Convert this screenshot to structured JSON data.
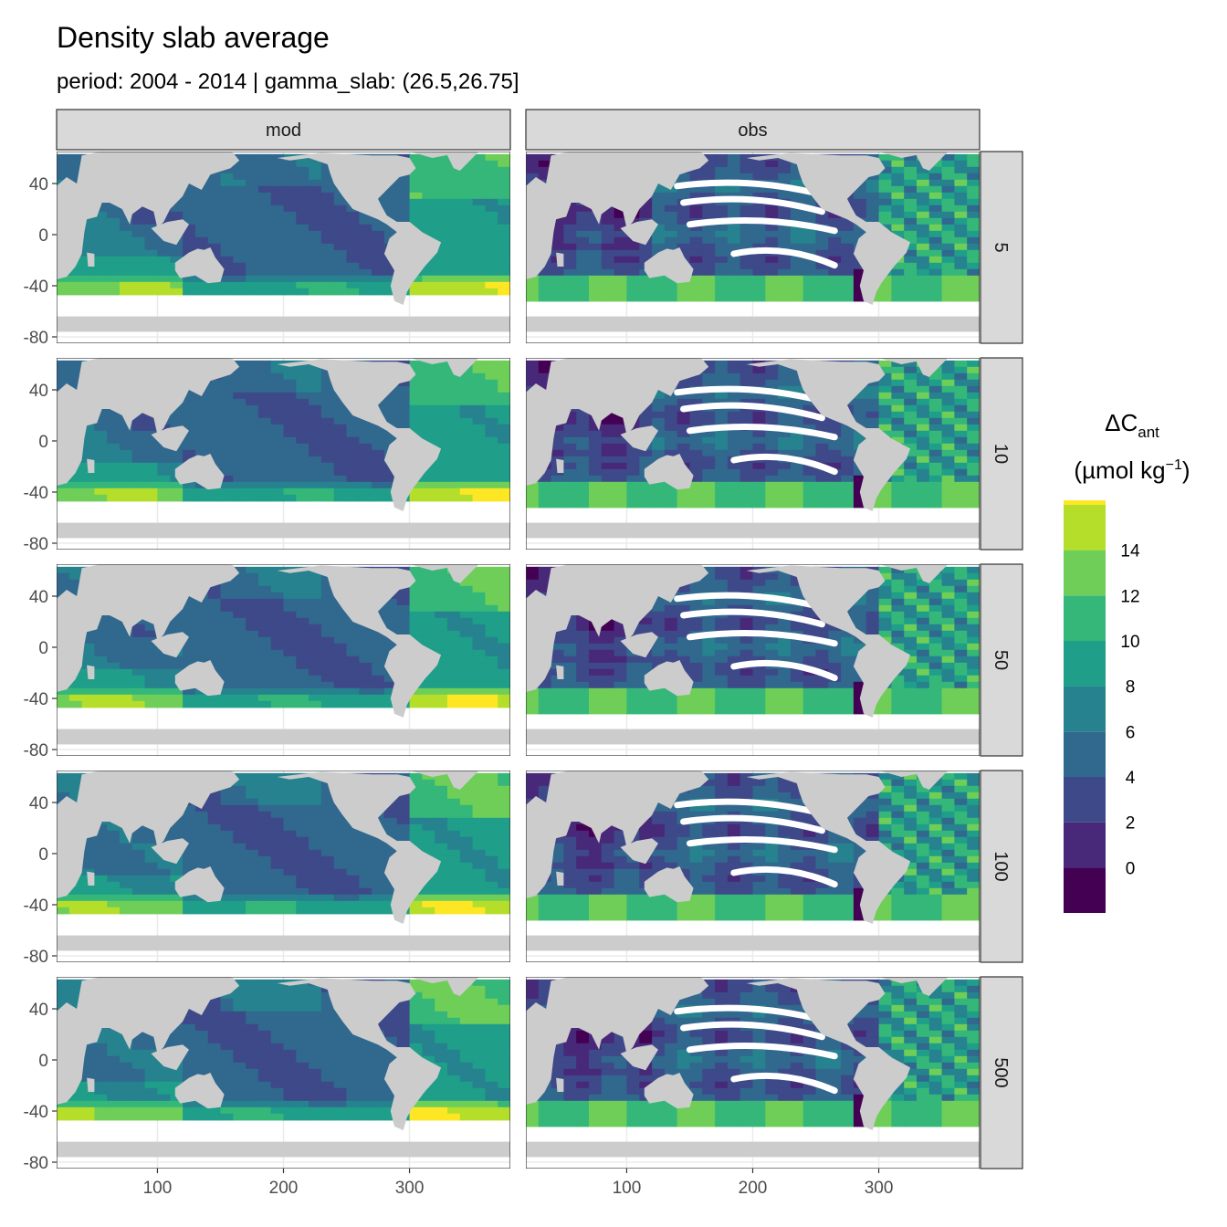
{
  "chart_data": {
    "type": "heatmap",
    "title": "Density slab average",
    "subtitle": "period: 2004 - 2014 | gamma_slab: (26.5,26.75]",
    "facet_columns": [
      "mod",
      "obs"
    ],
    "facet_rows": [
      "5",
      "10",
      "50",
      "100",
      "500"
    ],
    "x_ticks": [
      100,
      200,
      300
    ],
    "y_ticks": [
      40,
      0,
      -40,
      -80
    ],
    "xlim": [
      20,
      380
    ],
    "ylim": [
      -85,
      65
    ],
    "grid": "on",
    "legend": {
      "title": "ΔC",
      "title_sub": "ant",
      "unit_prefix": "(µmol kg",
      "unit_sup": "−1",
      "unit_suffix": ")",
      "placement": "right",
      "breaks": [
        14,
        12,
        10,
        8,
        6,
        4,
        2,
        0
      ],
      "bins": [
        {
          "range": [
            -2,
            0
          ],
          "color": "#440154"
        },
        {
          "range": [
            0,
            2
          ],
          "color": "#482878"
        },
        {
          "range": [
            2,
            4
          ],
          "color": "#3e4989"
        },
        {
          "range": [
            4,
            6
          ],
          "color": "#31688e"
        },
        {
          "range": [
            6,
            8
          ],
          "color": "#26828e"
        },
        {
          "range": [
            8,
            10
          ],
          "color": "#1f9e89"
        },
        {
          "range": [
            10,
            12
          ],
          "color": "#35b779"
        },
        {
          "range": [
            12,
            14
          ],
          "color": "#6ece58"
        },
        {
          "range": [
            14,
            16
          ],
          "color": "#b5de2b"
        },
        {
          "range": [
            16,
            18
          ],
          "color": "#fde725"
        }
      ]
    }
  }
}
